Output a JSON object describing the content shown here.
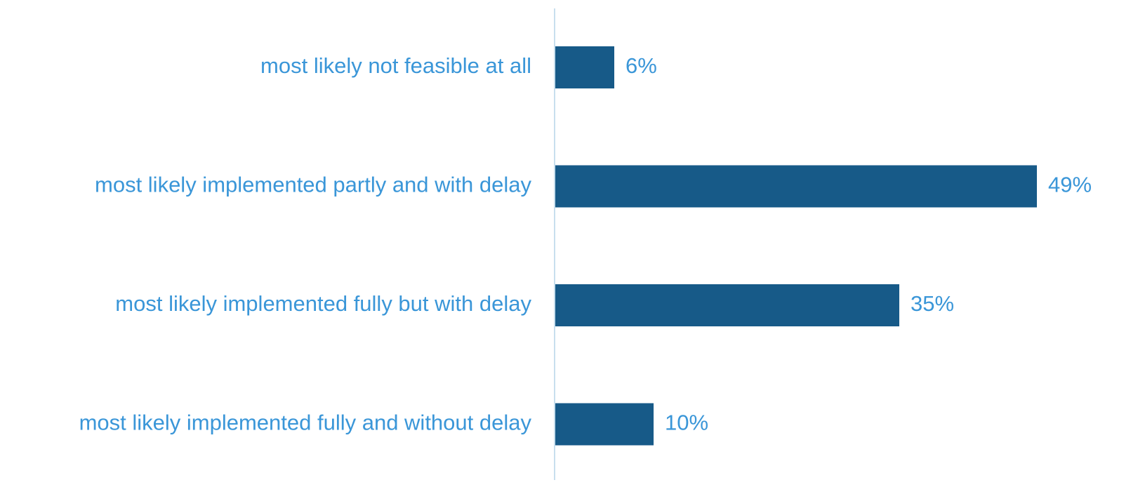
{
  "chart_data": {
    "type": "bar",
    "orientation": "horizontal",
    "categories": [
      "most likely not feasible at all",
      "most likely implemented partly and with delay",
      "most likely implemented fully but with delay",
      "most likely implemented fully and without delay"
    ],
    "values": [
      6,
      49,
      35,
      10
    ],
    "value_labels": [
      "6%",
      "49%",
      "35%",
      "10%"
    ],
    "color": "#175a88"
  }
}
